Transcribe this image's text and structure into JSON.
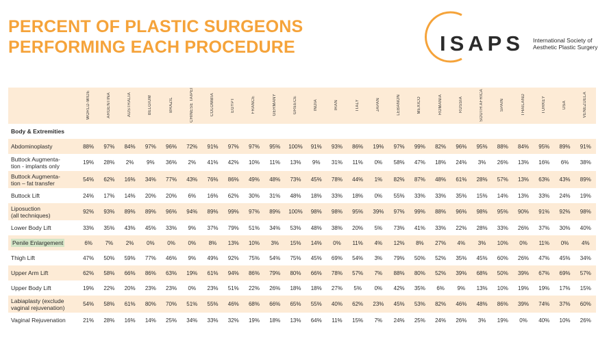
{
  "title": {
    "line1": "PERCENT OF PLASTIC SURGEONS",
    "line2": "PERFORMING EACH PROCEDURE"
  },
  "logo": {
    "brand": "ISAPS",
    "line1": "International Society of",
    "line2": "Aesthetic Plastic Surgery",
    "color": "#f5a33a"
  },
  "section": "Body & Extremities",
  "columns": [
    "WORLD-WIDE",
    "ARGENTINA",
    "AUSTRALIA",
    "BELGIUM",
    "BRAZIL",
    "CHINESE TAIPEI",
    "COLOMBIA",
    "EGYPT",
    "FRANCE",
    "GERMANY",
    "GREECE",
    "INDIA",
    "IRAN",
    "ITALY",
    "JAPAN",
    "LEBANON",
    "MEXICO",
    "ROMANIA",
    "RUSSIA",
    "SOUTH AFRICA",
    "SPAIN",
    "THAILAND",
    "TURKEY",
    "USA",
    "VENEZUELA"
  ],
  "rows": [
    {
      "label1": "Abdominoplasty",
      "label2": "",
      "values": [
        "88%",
        "97%",
        "84%",
        "97%",
        "96%",
        "72%",
        "91%",
        "97%",
        "97%",
        "95%",
        "100%",
        "91%",
        "93%",
        "86%",
        "19%",
        "97%",
        "99%",
        "82%",
        "96%",
        "95%",
        "88%",
        "84%",
        "95%",
        "89%",
        "91%"
      ]
    },
    {
      "label1": "Buttock Augmenta-",
      "label2": "tion - implants only",
      "values": [
        "19%",
        "28%",
        "2%",
        "9%",
        "36%",
        "2%",
        "41%",
        "42%",
        "10%",
        "11%",
        "13%",
        "9%",
        "31%",
        "11%",
        "0%",
        "58%",
        "47%",
        "18%",
        "24%",
        "3%",
        "26%",
        "13%",
        "16%",
        "6%",
        "38%"
      ]
    },
    {
      "label1": "Buttock Augmenta-",
      "label2": "tion – fat transfer",
      "values": [
        "54%",
        "62%",
        "16%",
        "34%",
        "77%",
        "43%",
        "76%",
        "86%",
        "49%",
        "48%",
        "73%",
        "45%",
        "78%",
        "44%",
        "1%",
        "82%",
        "87%",
        "48%",
        "61%",
        "28%",
        "57%",
        "13%",
        "63%",
        "43%",
        "89%"
      ]
    },
    {
      "label1": "Buttock Lift",
      "label2": "",
      "values": [
        "24%",
        "17%",
        "14%",
        "20%",
        "20%",
        "6%",
        "16%",
        "62%",
        "30%",
        "31%",
        "48%",
        "18%",
        "33%",
        "18%",
        "0%",
        "55%",
        "33%",
        "33%",
        "35%",
        "15%",
        "14%",
        "13%",
        "33%",
        "24%",
        "19%"
      ]
    },
    {
      "label1": "Liposuction",
      "label2": "(all techniques)",
      "values": [
        "92%",
        "93%",
        "89%",
        "89%",
        "96%",
        "94%",
        "89%",
        "99%",
        "97%",
        "89%",
        "100%",
        "98%",
        "98%",
        "95%",
        "39%",
        "97%",
        "99%",
        "88%",
        "96%",
        "98%",
        "95%",
        "90%",
        "91%",
        "92%",
        "98%"
      ]
    },
    {
      "label1": "Lower Body Lift",
      "label2": "",
      "values": [
        "33%",
        "35%",
        "43%",
        "45%",
        "33%",
        "9%",
        "37%",
        "79%",
        "51%",
        "34%",
        "53%",
        "48%",
        "38%",
        "20%",
        "5%",
        "73%",
        "41%",
        "33%",
        "22%",
        "28%",
        "33%",
        "26%",
        "37%",
        "30%",
        "40%"
      ]
    },
    {
      "label1": "Penile Enlargement",
      "label2": "",
      "highlight": true,
      "values": [
        "6%",
        "7%",
        "2%",
        "0%",
        "0%",
        "0%",
        "8%",
        "13%",
        "10%",
        "3%",
        "15%",
        "14%",
        "0%",
        "11%",
        "4%",
        "12%",
        "8%",
        "27%",
        "4%",
        "3%",
        "10%",
        "0%",
        "11%",
        "0%",
        "4%"
      ]
    },
    {
      "label1": "Thigh Lift",
      "label2": "",
      "values": [
        "47%",
        "50%",
        "59%",
        "77%",
        "46%",
        "9%",
        "49%",
        "92%",
        "75%",
        "54%",
        "75%",
        "45%",
        "69%",
        "54%",
        "3%",
        "79%",
        "50%",
        "52%",
        "35%",
        "45%",
        "60%",
        "26%",
        "47%",
        "45%",
        "34%"
      ]
    },
    {
      "label1": "Upper Arm Lift",
      "label2": "",
      "values": [
        "62%",
        "58%",
        "66%",
        "86%",
        "63%",
        "19%",
        "61%",
        "94%",
        "86%",
        "79%",
        "80%",
        "66%",
        "78%",
        "57%",
        "7%",
        "88%",
        "80%",
        "52%",
        "39%",
        "68%",
        "50%",
        "39%",
        "67%",
        "69%",
        "57%"
      ]
    },
    {
      "label1": "Upper Body Lift",
      "label2": "",
      "values": [
        "19%",
        "22%",
        "20%",
        "23%",
        "23%",
        "0%",
        "23%",
        "51%",
        "22%",
        "26%",
        "18%",
        "18%",
        "27%",
        "5%",
        "0%",
        "42%",
        "35%",
        "6%",
        "9%",
        "13%",
        "10%",
        "19%",
        "19%",
        "17%",
        "15%"
      ]
    },
    {
      "label1": "Labiaplasty (exclude",
      "label2": "vaginal rejuvenation)",
      "values": [
        "54%",
        "58%",
        "61%",
        "80%",
        "70%",
        "51%",
        "55%",
        "46%",
        "68%",
        "66%",
        "65%",
        "55%",
        "40%",
        "62%",
        "23%",
        "45%",
        "53%",
        "82%",
        "46%",
        "48%",
        "86%",
        "39%",
        "74%",
        "37%",
        "60%"
      ]
    },
    {
      "label1": "Vaginal Rejuvenation",
      "label2": "",
      "values": [
        "21%",
        "28%",
        "16%",
        "14%",
        "25%",
        "34%",
        "33%",
        "32%",
        "19%",
        "18%",
        "13%",
        "64%",
        "11%",
        "15%",
        "7%",
        "24%",
        "25%",
        "24%",
        "26%",
        "3%",
        "19%",
        "0%",
        "40%",
        "10%",
        "26%"
      ]
    }
  ]
}
